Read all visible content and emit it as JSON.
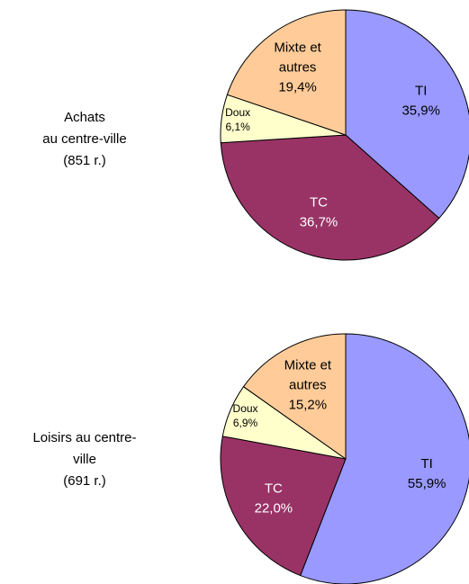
{
  "chart_data": [
    {
      "type": "pie",
      "title": [
        "Achats",
        "au centre-ville",
        "(851 r.)"
      ],
      "categories": [
        "TI",
        "TC",
        "Doux",
        "Mixte et autres"
      ],
      "values": [
        35.9,
        36.7,
        6.1,
        19.4
      ],
      "value_labels": [
        "35,9%",
        "36,7%",
        "6,1%",
        "19,4%"
      ],
      "colors": [
        "#9999ff",
        "#993366",
        "#ffffcc",
        "#ffcc99"
      ],
      "text_colors": [
        "#000000",
        "#ffffff",
        "#000000",
        "#000000"
      ]
    },
    {
      "type": "pie",
      "title": [
        "Loisirs au centre-",
        "ville",
        "(691 r.)"
      ],
      "categories": [
        "TI",
        "TC",
        "Doux",
        "Mixte et autres"
      ],
      "values": [
        55.9,
        22.0,
        6.9,
        15.2
      ],
      "value_labels": [
        "55,9%",
        "22,0%",
        "6,9%",
        "15,2%"
      ],
      "colors": [
        "#9999ff",
        "#993366",
        "#ffffcc",
        "#ffcc99"
      ],
      "text_colors": [
        "#000000",
        "#ffffff",
        "#000000",
        "#000000"
      ]
    }
  ]
}
